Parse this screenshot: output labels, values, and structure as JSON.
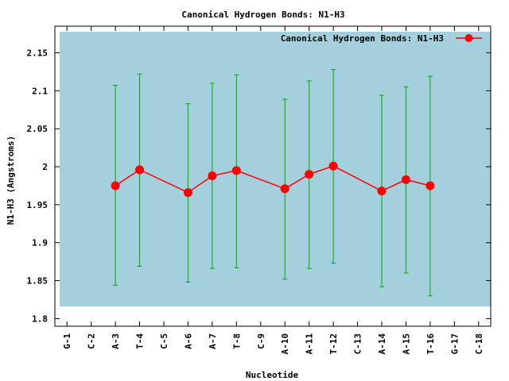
{
  "chart_data": {
    "type": "line",
    "title": "Canonical Hydrogen Bonds: N1-H3",
    "xlabel": "Nucleotide",
    "ylabel": "N1-H3 (Angstroms)",
    "ylim": [
      1.79,
      2.185
    ],
    "y_ticks": [
      "1.8",
      "1.85",
      "1.9",
      "1.95",
      "2",
      "2.05",
      "2.1",
      "2.15"
    ],
    "y_tick_values": [
      1.8,
      1.85,
      1.9,
      1.95,
      2.0,
      2.05,
      2.1,
      2.15
    ],
    "categories": [
      "G-1",
      "C-2",
      "A-3",
      "T-4",
      "C-5",
      "A-6",
      "A-7",
      "T-8",
      "C-9",
      "A-10",
      "A-11",
      "T-12",
      "C-13",
      "A-14",
      "A-15",
      "T-16",
      "G-17",
      "C-18"
    ],
    "legend_position": "top-right",
    "grid": false,
    "series": [
      {
        "name": "Canonical Hydrogen Bonds: N1-H3",
        "color": "#ff0000",
        "points": [
          {
            "x": "A-3",
            "y": 1.975,
            "err_low": 1.844,
            "err_high": 2.107
          },
          {
            "x": "T-4",
            "y": 1.996,
            "err_low": 1.869,
            "err_high": 2.122
          },
          {
            "x": "A-6",
            "y": 1.966,
            "err_low": 1.848,
            "err_high": 2.083
          },
          {
            "x": "A-7",
            "y": 1.988,
            "err_low": 1.866,
            "err_high": 2.11
          },
          {
            "x": "T-8",
            "y": 1.995,
            "err_low": 1.867,
            "err_high": 2.121
          },
          {
            "x": "A-10",
            "y": 1.971,
            "err_low": 1.852,
            "err_high": 2.089
          },
          {
            "x": "A-11",
            "y": 1.99,
            "err_low": 1.866,
            "err_high": 2.113
          },
          {
            "x": "T-12",
            "y": 2.001,
            "err_low": 1.873,
            "err_high": 2.128
          },
          {
            "x": "A-14",
            "y": 1.968,
            "err_low": 1.842,
            "err_high": 2.094
          },
          {
            "x": "A-15",
            "y": 1.983,
            "err_low": 1.86,
            "err_high": 2.105
          },
          {
            "x": "T-16",
            "y": 1.975,
            "err_low": 1.83,
            "err_high": 2.119
          }
        ]
      }
    ],
    "colors": {
      "plot_background": "#a3d0dc",
      "line": "#ff0000",
      "errorbar": "#00aa00",
      "axis": "#000000"
    }
  }
}
